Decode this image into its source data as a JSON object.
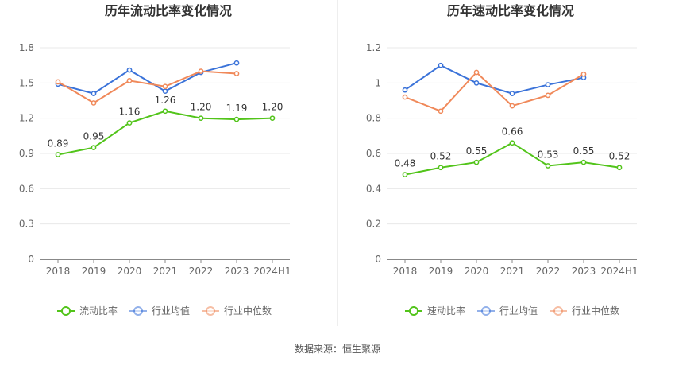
{
  "chart_data": [
    {
      "type": "line",
      "title": "历年流动比率变化情况",
      "categories": [
        "2018",
        "2019",
        "2020",
        "2021",
        "2022",
        "2023",
        "2024H1"
      ],
      "ylim": [
        0,
        1.8
      ],
      "yticks": [
        "0",
        "0.3",
        "0.6",
        "0.9",
        "1.2",
        "1.5",
        "1.8"
      ],
      "grid": true,
      "legend_position": "bottom",
      "series": [
        {
          "name": "流动比率",
          "color": "#52c41a",
          "values": [
            0.89,
            0.95,
            1.16,
            1.26,
            1.2,
            1.19,
            1.2
          ],
          "labels": [
            "0.89",
            "0.95",
            "1.16",
            "1.26",
            "1.20",
            "1.19",
            "1.20"
          ]
        },
        {
          "name": "行业均值",
          "color": "#3b73d9",
          "values": [
            1.49,
            1.41,
            1.61,
            1.43,
            1.59,
            1.67,
            null
          ]
        },
        {
          "name": "行业中位数",
          "color": "#f0895a",
          "values": [
            1.51,
            1.33,
            1.52,
            1.47,
            1.6,
            1.58,
            null
          ]
        }
      ]
    },
    {
      "type": "line",
      "title": "历年速动比率变化情况",
      "categories": [
        "2018",
        "2019",
        "2020",
        "2021",
        "2022",
        "2023",
        "2024H1"
      ],
      "ylim": [
        0,
        1.2
      ],
      "yticks": [
        "0",
        "0.2",
        "0.4",
        "0.6",
        "0.8",
        "1",
        "1.2"
      ],
      "grid": true,
      "legend_position": "bottom",
      "series": [
        {
          "name": "速动比率",
          "color": "#52c41a",
          "values": [
            0.48,
            0.52,
            0.55,
            0.66,
            0.53,
            0.55,
            0.52
          ],
          "labels": [
            "0.48",
            "0.52",
            "0.55",
            "0.66",
            "0.53",
            "0.55",
            "0.52"
          ]
        },
        {
          "name": "行业均值",
          "color": "#3b73d9",
          "values": [
            0.96,
            1.1,
            1.0,
            0.94,
            0.99,
            1.03,
            null
          ]
        },
        {
          "name": "行业中位数",
          "color": "#f0895a",
          "values": [
            0.92,
            0.84,
            1.06,
            0.87,
            0.93,
            1.05,
            null
          ]
        }
      ]
    }
  ],
  "footer": {
    "source": "数据来源：恒生聚源"
  }
}
